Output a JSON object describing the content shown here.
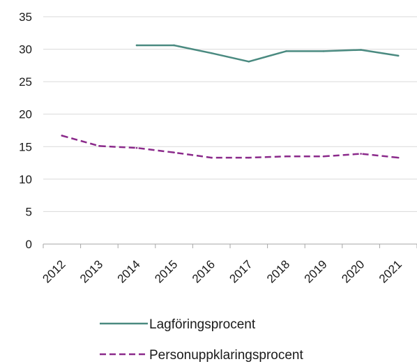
{
  "chart_data": {
    "type": "line",
    "categories": [
      "2012",
      "2013",
      "2014",
      "2015",
      "2016",
      "2017",
      "2018",
      "2019",
      "2020",
      "2021"
    ],
    "series": [
      {
        "name": "Lagföringsprocent",
        "values": [
          null,
          null,
          30.6,
          30.6,
          29.4,
          28.1,
          29.7,
          29.7,
          29.9,
          29.0
        ],
        "color": "#4a8a80",
        "dash": "solid"
      },
      {
        "name": "Personuppklaringsprocent",
        "values": [
          16.7,
          15.1,
          14.8,
          14.1,
          13.3,
          13.3,
          13.5,
          13.5,
          13.9,
          13.3
        ],
        "color": "#8b2a8b",
        "dash": "dashed"
      }
    ],
    "ylim": [
      0,
      35
    ],
    "yticks": [
      0,
      5,
      10,
      15,
      20,
      25,
      30,
      35
    ],
    "grid": true,
    "legend_position": "bottom"
  }
}
